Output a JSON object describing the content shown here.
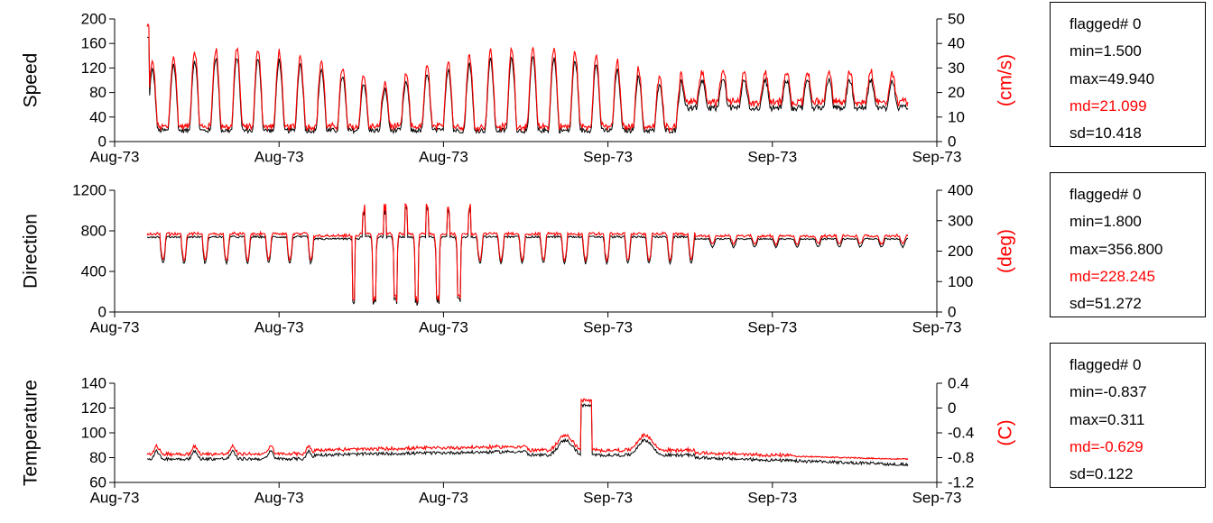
{
  "colors": {
    "black_series": "#000000",
    "red_series": "#ff0000"
  },
  "chart_data": [
    {
      "type": "line",
      "ylabel_left": "Speed",
      "ylabel_right": "(cm/s)",
      "ylim_left": [
        0,
        200
      ],
      "yticks_left": [
        "0",
        "40",
        "80",
        "120",
        "160",
        "200"
      ],
      "ylim_right": [
        0,
        50
      ],
      "yticks_right": [
        "0",
        "10",
        "20",
        "30",
        "40",
        "50"
      ],
      "xticks": [
        "Aug-73",
        "Aug-73",
        "Aug-73",
        "Sep-73",
        "Sep-73",
        "Sep-73"
      ],
      "approx_days": 42,
      "cycles": 36,
      "black": {
        "base": 68,
        "amp": 42,
        "min": 1,
        "max": 175
      },
      "red": {
        "base": 21,
        "amp": 12,
        "min": 0,
        "max": 50
      },
      "stats": [
        "flagged# 0",
        "min=1.500",
        "max=49.940",
        "md=21.099",
        "sd=10.418"
      ]
    },
    {
      "type": "line",
      "ylabel_left": "Direction",
      "ylabel_right": "(deg)",
      "ylim_left": [
        0,
        1200
      ],
      "yticks_left": [
        "0",
        "400",
        "800",
        "1200"
      ],
      "ylim_right": [
        0,
        400
      ],
      "yticks_right": [
        "0",
        "100",
        "200",
        "300",
        "400"
      ],
      "xticks": [
        "Aug-73",
        "Aug-73",
        "Aug-73",
        "Sep-73",
        "Sep-73",
        "Sep-73"
      ],
      "approx_days": 42,
      "cycles": 36,
      "black": {
        "base": 720,
        "min": 40,
        "max": 1060
      },
      "red": {
        "base": 245,
        "min": 5,
        "max": 355
      },
      "stats": [
        "flagged# 0",
        "min=1.800",
        "max=356.800",
        "md=228.245",
        "sd=51.272"
      ]
    },
    {
      "type": "line",
      "ylabel_left": "Temperature",
      "ylabel_right": "(C)",
      "ylim_left": [
        60,
        140
      ],
      "yticks_left": [
        "60",
        "80",
        "100",
        "120",
        "140"
      ],
      "ylim_right": [
        -1.2,
        0.4
      ],
      "yticks_right": [
        "-1.2",
        "-0.8",
        "-0.4",
        "0",
        "0.4"
      ],
      "xticks": [
        "Aug-73",
        "Aug-73",
        "Aug-73",
        "Sep-73",
        "Sep-73",
        "Sep-73"
      ],
      "approx_days": 42,
      "black": {
        "base": 80,
        "min": 71,
        "max": 132
      },
      "red": {
        "base": -0.63,
        "min": -0.837,
        "max": 0.311
      },
      "stats": [
        "flagged# 0",
        "min=-0.837",
        "max=0.311",
        "md=-0.629",
        "sd=0.122"
      ]
    }
  ]
}
